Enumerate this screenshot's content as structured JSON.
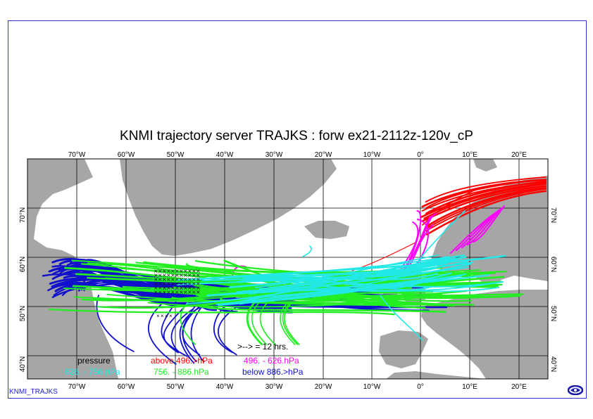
{
  "title": "KNMI trajectory server TRAJKS : forw ex21-2112z-120v_cP",
  "footer": "KNMI_TRAJKS",
  "lon_labels": [
    "70°W",
    "60°W",
    "50°W",
    "40°W",
    "30°W",
    "20°W",
    "10°W",
    "0°",
    "10°E",
    "20°E"
  ],
  "lat_labels_left": [
    "70°N",
    "60°N",
    "50°N",
    "40°N"
  ],
  "lat_labels_right": [
    "70°N",
    "60°N",
    "50°N",
    "40°N"
  ],
  "colors": {
    "land": "#a6a6a6",
    "sea": "#ffffff",
    "grid": "#000000",
    "above": "#ff0000",
    "magenta": "#ff00ff",
    "cyan": "#22e8e8",
    "green": "#22ee22",
    "below": "#1111cc",
    "frame": "#3333cc"
  },
  "legend": {
    "scale_note": ">--> = 12 hrs.",
    "pressure": "pressure",
    "above": "above 496.>hPa",
    "band1": "496. -   626.hPa",
    "band2": "626. -   756.hPa",
    "band3": "756. -   886.hPa",
    "below": "below 886.>hPa"
  }
}
